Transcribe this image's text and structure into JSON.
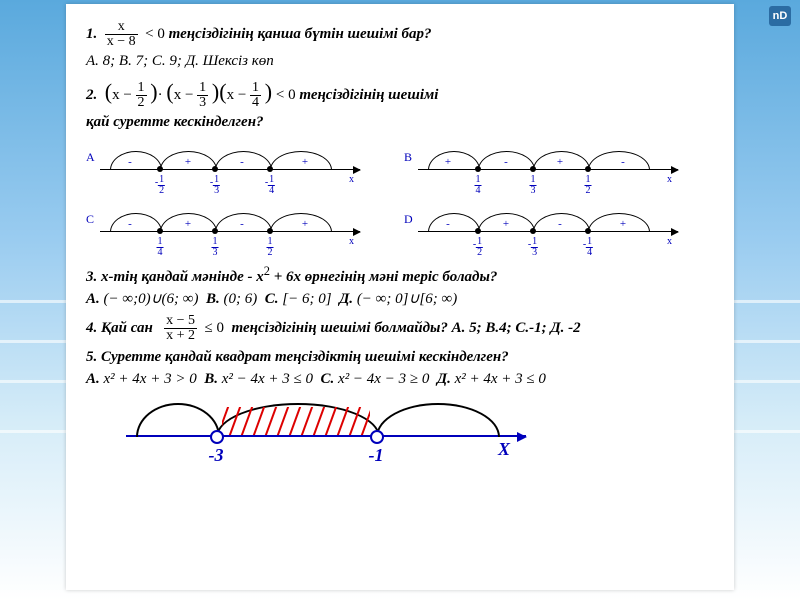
{
  "logo": "nD",
  "q1": {
    "num": "x",
    "den": "x − 8",
    "op": "< 0",
    "text": "теңсіздігінің қанша бүтін шешімі бар?",
    "answers": "А. 8; В. 7; С. 9; Д. Шексіз көп"
  },
  "q2": {
    "f1n": "1",
    "f1d": "2",
    "f2n": "1",
    "f2d": "3",
    "f3n": "1",
    "f3d": "4",
    "op": "< 0",
    "t1": "теңсіздігінің шешімі",
    "t2": "қай суретте кескінделген?"
  },
  "diagrams": {
    "points_style": {
      "pt_color": "#000",
      "axis_color": "#000",
      "label_color": "#0000bb"
    },
    "A": {
      "pts": [
        60,
        115,
        170
      ],
      "signs": [
        "-",
        "+",
        "-",
        "+"
      ],
      "sx": [
        30,
        88,
        142,
        205
      ],
      "labels": [
        [
          "-",
          "1",
          "2"
        ],
        [
          "-",
          "1",
          "3"
        ],
        [
          "-",
          "1",
          "4"
        ]
      ]
    },
    "B": {
      "pts": [
        60,
        115,
        170
      ],
      "signs": [
        "+",
        "-",
        "+",
        "-"
      ],
      "sx": [
        30,
        88,
        142,
        205
      ],
      "labels": [
        [
          "",
          "1",
          "4"
        ],
        [
          "",
          "1",
          "3"
        ],
        [
          "",
          "1",
          "2"
        ]
      ]
    },
    "C": {
      "pts": [
        60,
        115,
        170
      ],
      "signs": [
        "-",
        "+",
        "-",
        "+"
      ],
      "sx": [
        30,
        88,
        142,
        205
      ],
      "labels": [
        [
          "",
          "1",
          "4"
        ],
        [
          "",
          "1",
          "3"
        ],
        [
          "",
          "1",
          "2"
        ]
      ]
    },
    "D": {
      "pts": [
        60,
        115,
        170
      ],
      "signs": [
        "-",
        "+",
        "-",
        "+"
      ],
      "sx": [
        30,
        88,
        142,
        205
      ],
      "labels": [
        [
          "-",
          "1",
          "2"
        ],
        [
          "-",
          "1",
          "3"
        ],
        [
          "-",
          "1",
          "4"
        ]
      ]
    }
  },
  "q3": {
    "pre": "3. х-тің қандай мәнінде  - x",
    "sq": "2",
    "post": " + 6x өрнегінің мәні теріс болады?",
    "ans": {
      "A": "(− ∞;0)∪(6; ∞)",
      "B": "(0; 6)",
      "C": "[− 6; 0]",
      "D": "(− ∞; 0]∪[6; ∞)"
    }
  },
  "q4": {
    "num": "x − 5",
    "den": "x + 2",
    "op": "≤ 0",
    "pre": "4. Қай сан",
    "post": "теңсіздігінің шешімі болмайды? А. 5; В.4; С.-1; Д. -2"
  },
  "q5": {
    "text": "5.  Суретте қандай квадрат  теңсіздіктің шешімі кескінделген?",
    "ans": {
      "A": "x² + 4x + 3 > 0",
      "B": "x² − 4x + 3 ≤ 0",
      "C": "x² − 4x − 3 ≥ 0",
      "D": "x² + 4x + 3 ≤ 0"
    }
  },
  "bigline": {
    "p1": 90,
    "p2": 250,
    "l1": "-3",
    "l2": "-1",
    "xl": "X",
    "colors": {
      "axis": "#0000bb",
      "hatch": "#dd0000",
      "arc": "#000000"
    }
  }
}
